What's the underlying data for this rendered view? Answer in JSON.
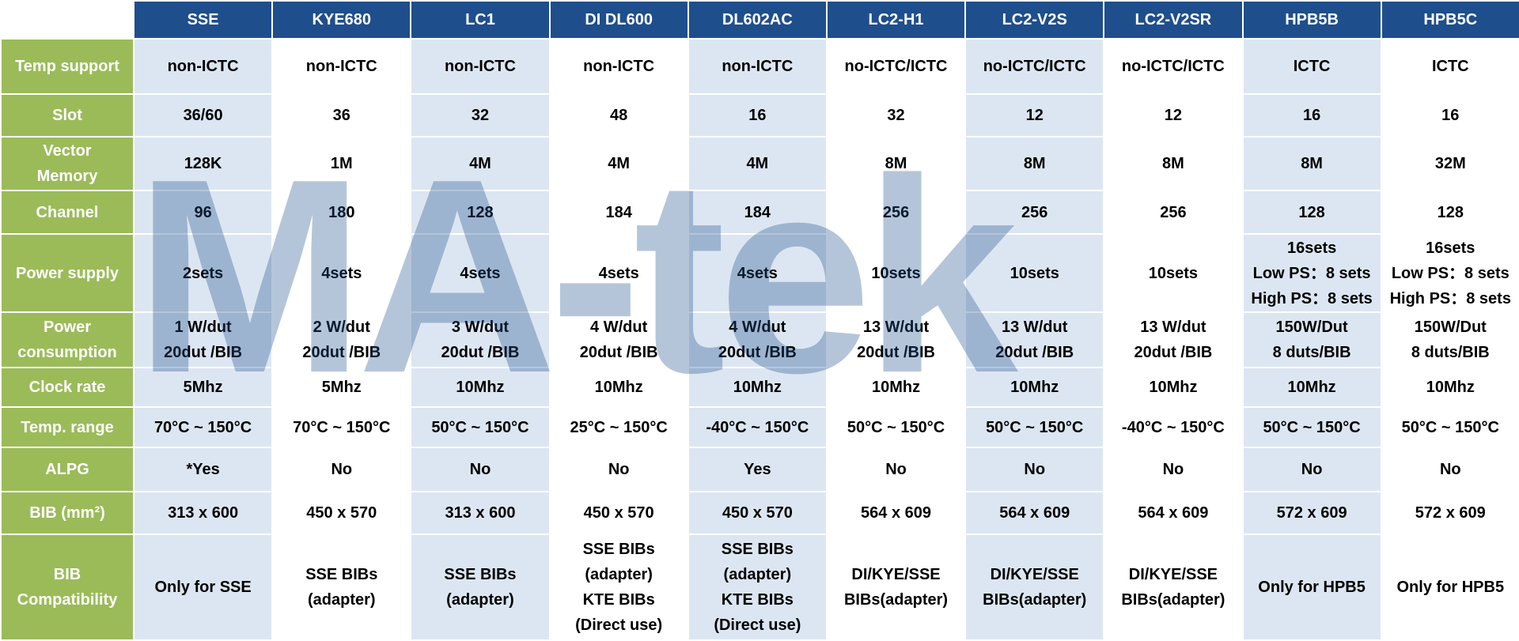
{
  "table": {
    "columns": [
      "SSE",
      "KYE680",
      "LC1",
      "DI DL600",
      "DL602AC",
      "LC2-H1",
      "LC2-V2S",
      "LC2-V2SR",
      "HPB5B",
      "HPB5C"
    ],
    "rows": [
      {
        "label": "Temp support",
        "cells": [
          "non-ICTC",
          "non-ICTC",
          "non-ICTC",
          "non-ICTC",
          "non-ICTC",
          "no-ICTC/ICTC",
          "no-ICTC/ICTC",
          "no-ICTC/ICTC",
          "ICTC",
          "ICTC"
        ]
      },
      {
        "label": "Slot",
        "cells": [
          "36/60",
          "36",
          "32",
          "48",
          "16",
          "32",
          "12",
          "12",
          "16",
          "16"
        ]
      },
      {
        "label": "Vector\nMemory",
        "cells": [
          "128K",
          "1M",
          "4M",
          "4M",
          "4M",
          "8M",
          "8M",
          "8M",
          "8M",
          "32M"
        ]
      },
      {
        "label": "Channel",
        "cells": [
          "96",
          "180",
          "128",
          "184",
          "184",
          "256",
          "256",
          "256",
          "128",
          "128"
        ]
      },
      {
        "label": "Power supply",
        "cells": [
          "2sets",
          "4sets",
          "4sets",
          "4sets",
          "4sets",
          "10sets",
          "10sets",
          "10sets",
          "16sets\nLow PS：8 sets\nHigh PS：8 sets",
          "16sets\nLow PS：8 sets\nHigh PS：8 sets"
        ]
      },
      {
        "label": "Power\nconsumption",
        "cells": [
          "1 W/dut\n20dut /BIB",
          "2 W/dut\n20dut /BIB",
          "3 W/dut\n20dut /BIB",
          "4 W/dut\n20dut /BIB",
          "4 W/dut\n20dut /BIB",
          "13 W/dut\n20dut /BIB",
          "13 W/dut\n20dut /BIB",
          "13 W/dut\n20dut /BIB",
          "150W/Dut\n8 duts/BIB",
          "150W/Dut\n8 duts/BIB"
        ]
      },
      {
        "label": "Clock rate",
        "cells": [
          "5Mhz",
          "5Mhz",
          "10Mhz",
          "10Mhz",
          "10Mhz",
          "10Mhz",
          "10Mhz",
          "10Mhz",
          "10Mhz",
          "10Mhz"
        ]
      },
      {
        "label": "Temp. range",
        "cells": [
          "70°C ~ 150°C",
          "70°C ~ 150°C",
          "50°C ~ 150°C",
          "25°C ~ 150°C",
          "-40°C ~ 150°C",
          "50°C ~ 150°C",
          "50°C ~ 150°C",
          "-40°C ~ 150°C",
          "50°C ~ 150°C",
          "50°C ~ 150°C"
        ]
      },
      {
        "label": "ALPG",
        "cells": [
          "*Yes",
          "No",
          "No",
          "No",
          "Yes",
          "No",
          "No",
          "No",
          "No",
          "No"
        ]
      },
      {
        "label": "BIB (mm²)",
        "cells": [
          "313 x 600",
          "450 x 570",
          "313 x 600",
          "450 x 570",
          "450 x 570",
          "564 x 609",
          "564 x 609",
          "564 x 609",
          "572 x 609",
          "572 x 609"
        ]
      },
      {
        "label": "BIB\nCompatibility",
        "cells": [
          "Only for SSE",
          "SSE BIBs\n(adapter)",
          "SSE BIBs\n(adapter)",
          "SSE BIBs\n(adapter)\nKTE BIBs\n(Direct use)",
          "SSE BIBs\n(adapter)\nKTE BIBs\n(Direct use)",
          "DI/KYE/SSE\nBIBs(adapter)",
          "DI/KYE/SSE\nBIBs(adapter)",
          "DI/KYE/SSE\nBIBs(adapter)",
          "Only for HPB5",
          "Only for HPB5"
        ]
      }
    ]
  },
  "watermark": "MA-tek"
}
